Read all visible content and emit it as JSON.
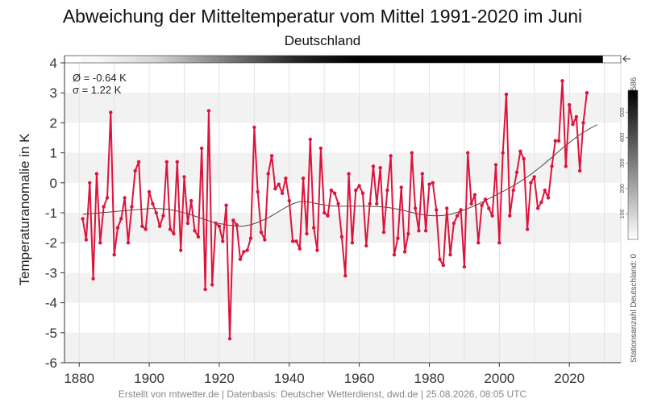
{
  "chart_data": {
    "type": "line",
    "title": "Abweichung der Mitteltemperatur vom Mittel 1991-2020 im Juni",
    "subtitle": "Deutschland",
    "ylabel": "Temperaturanomalie in K",
    "xlabel": "",
    "xlim": [
      1876,
      2035
    ],
    "ylim": [
      -6,
      4
    ],
    "x_ticks": [
      1880,
      1900,
      1920,
      1940,
      1960,
      1980,
      2000,
      2020
    ],
    "y_ticks": [
      4,
      3,
      2,
      1,
      0,
      -1,
      -2,
      -3,
      -4,
      -5,
      -6
    ],
    "stats": {
      "mean": "Ø = -0.64 K",
      "sigma": "σ = 1.22 K"
    },
    "start_year": 1881,
    "series": [
      {
        "role": "annual",
        "color": "#dc143c",
        "values": [
          -1.2,
          -1.9,
          0.0,
          -3.2,
          0.3,
          -2.0,
          -0.8,
          -0.5,
          2.35,
          -2.4,
          -1.5,
          -1.2,
          -0.5,
          -2.0,
          -0.8,
          0.4,
          0.7,
          -1.45,
          -1.55,
          -0.3,
          -0.7,
          -1.0,
          -1.45,
          -1.1,
          0.7,
          -1.55,
          -1.7,
          0.7,
          -2.25,
          0.2,
          -1.35,
          -0.6,
          -1.6,
          -1.8,
          1.15,
          -3.55,
          2.4,
          -3.4,
          -1.35,
          -1.45,
          -1.95,
          -0.75,
          -5.2,
          -1.25,
          -1.4,
          -2.55,
          -2.3,
          -2.25,
          -1.85,
          1.85,
          -0.3,
          -1.65,
          -1.9,
          0.3,
          0.9,
          -0.2,
          -0.05,
          -0.35,
          0.15,
          -0.6,
          -1.95,
          -1.95,
          -2.2,
          0.15,
          -1.7,
          1.45,
          -1.5,
          -2.25,
          1.15,
          -1.0,
          -1.1,
          -0.25,
          -0.35,
          -0.7,
          -1.8,
          -3.1,
          0.3,
          -2.0,
          -0.25,
          -0.1,
          -0.35,
          -2.1,
          -0.7,
          0.55,
          -0.7,
          0.5,
          -1.65,
          -0.25,
          0.9,
          -2.4,
          -1.85,
          -0.15,
          -2.3,
          -1.7,
          1.0,
          -0.85,
          -1.6,
          0.3,
          -1.6,
          -0.05,
          0.0,
          -0.9,
          -2.55,
          -2.75,
          -0.85,
          -2.4,
          -1.35,
          -1.1,
          -0.9,
          -2.8,
          1.0,
          -0.7,
          -0.4,
          -2.0,
          -0.75,
          -0.55,
          -0.85,
          -1.1,
          0.6,
          -2.0,
          1.0,
          2.95,
          -1.1,
          -0.25,
          0.35,
          1.05,
          0.8,
          -1.55,
          0.0,
          0.2,
          -0.85,
          -0.65,
          -0.25,
          -0.5,
          0.55,
          1.4,
          1.4,
          3.4,
          0.55,
          2.6,
          1.95,
          2.2,
          0.4,
          2.0,
          3.0
        ]
      },
      {
        "role": "smoothed",
        "color": "#333333",
        "values": [
          -1.05,
          -1.04,
          -1.03,
          -1.02,
          -1.01,
          -1.0,
          -0.99,
          -0.98,
          -0.97,
          -0.96,
          -0.95,
          -0.94,
          -0.93,
          -0.92,
          -0.91,
          -0.9,
          -0.89,
          -0.88,
          -0.87,
          -0.86,
          -0.86,
          -0.86,
          -0.86,
          -0.87,
          -0.88,
          -0.9,
          -0.92,
          -0.94,
          -0.97,
          -1.0,
          -1.03,
          -1.07,
          -1.11,
          -1.15,
          -1.19,
          -1.23,
          -1.27,
          -1.3,
          -1.33,
          -1.36,
          -1.38,
          -1.4,
          -1.42,
          -1.43,
          -1.44,
          -1.45,
          -1.44,
          -1.42,
          -1.4,
          -1.36,
          -1.32,
          -1.27,
          -1.22,
          -1.16,
          -1.1,
          -1.03,
          -0.96,
          -0.89,
          -0.82,
          -0.76,
          -0.7,
          -0.66,
          -0.63,
          -0.63,
          -0.63,
          -0.65,
          -0.67,
          -0.7,
          -0.72,
          -0.74,
          -0.76,
          -0.77,
          -0.78,
          -0.78,
          -0.78,
          -0.78,
          -0.78,
          -0.78,
          -0.78,
          -0.78,
          -0.78,
          -0.78,
          -0.78,
          -0.79,
          -0.79,
          -0.8,
          -0.81,
          -0.82,
          -0.84,
          -0.86,
          -0.88,
          -0.9,
          -0.93,
          -0.96,
          -0.99,
          -1.02,
          -1.04,
          -1.06,
          -1.08,
          -1.09,
          -1.1,
          -1.1,
          -1.1,
          -1.09,
          -1.07,
          -1.05,
          -1.02,
          -0.98,
          -0.94,
          -0.9,
          -0.86,
          -0.81,
          -0.76,
          -0.71,
          -0.65,
          -0.59,
          -0.53,
          -0.47,
          -0.41,
          -0.35,
          -0.29,
          -0.23,
          -0.17,
          -0.1,
          -0.03,
          0.04,
          0.12,
          0.2,
          0.28,
          0.37,
          0.46,
          0.55,
          0.65,
          0.75,
          0.85,
          0.95,
          1.05,
          1.15,
          1.25,
          1.34,
          1.43,
          1.52,
          1.6,
          1.68,
          1.75,
          1.82,
          1.88,
          1.94
        ]
      }
    ],
    "colorbar": {
      "label": "Stationsanzahl Deutschland: 0",
      "max_label": "586",
      "ticks": [
        "100",
        "200",
        "300",
        "400",
        "500"
      ],
      "tick_values": [
        100,
        200,
        300,
        400,
        500
      ],
      "max": 586,
      "station_counts": [
        15,
        15,
        15,
        15,
        15,
        20,
        25,
        30,
        35,
        40,
        45,
        50,
        55,
        60,
        65,
        70,
        75,
        80,
        85,
        90,
        95,
        100,
        110,
        120,
        130,
        140,
        150,
        160,
        170,
        180,
        190,
        200,
        210,
        220,
        230,
        240,
        250,
        260,
        270,
        280,
        290,
        300,
        310,
        320,
        330,
        340,
        350,
        360,
        370,
        380,
        390,
        400,
        410,
        420,
        430,
        440,
        450,
        460,
        470,
        480,
        490,
        500,
        505,
        510,
        515,
        520,
        525,
        530,
        535,
        540,
        545,
        550,
        555,
        560,
        565,
        570,
        575,
        580,
        586,
        586,
        586,
        586,
        586,
        586,
        586,
        586,
        586,
        586,
        586,
        586,
        586,
        586,
        586,
        586,
        586,
        586,
        586,
        586,
        586,
        586,
        586,
        586,
        586,
        586,
        586,
        586,
        586,
        586,
        586,
        586,
        586,
        586,
        586,
        586,
        586,
        586,
        586,
        586,
        586,
        586,
        586,
        586,
        586,
        586,
        586,
        586,
        586,
        586,
        586,
        586,
        586,
        586,
        586,
        586,
        586,
        586,
        586,
        586,
        586,
        586,
        586,
        586,
        586,
        586,
        586,
        586,
        586,
        586,
        586
      ]
    },
    "footer": "Erstellt von mtwetter.de | Datenbasis: Deutscher Wetterdienst, dwd.de | 25.08.2026, 08:05 UTC"
  }
}
